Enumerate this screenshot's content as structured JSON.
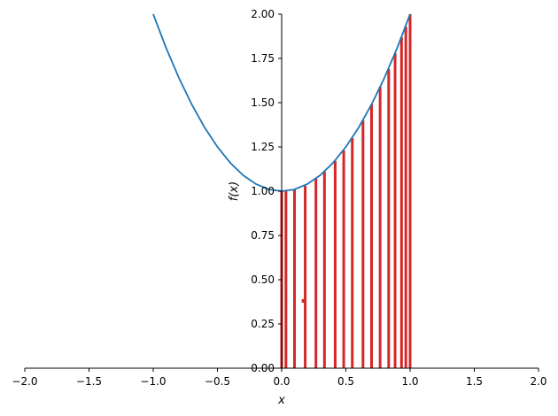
{
  "chart_data": {
    "type": "line",
    "xlabel": "x",
    "ylabel": "f(x)",
    "xlim": [
      -2,
      2
    ],
    "ylim": [
      0,
      2
    ],
    "grid": false,
    "xticks": [
      "−2.0",
      "−1.5",
      "−1.0",
      "−0.5",
      "0.0",
      "0.5",
      "1.0",
      "1.5",
      "2.0"
    ],
    "yticks": [
      "0.00",
      "0.25",
      "0.50",
      "0.75",
      "1.00",
      "1.25",
      "1.50",
      "1.75",
      "2.00"
    ],
    "xtick_values": [
      -2,
      -1.5,
      -1,
      -0.5,
      0,
      0.5,
      1,
      1.5,
      2
    ],
    "ytick_values": [
      0,
      0.25,
      0.5,
      0.75,
      1,
      1.25,
      1.5,
      1.75,
      2
    ],
    "curve": {
      "color": "#1f77b4",
      "x": [
        -1.0,
        -0.9,
        -0.8,
        -0.7,
        -0.6,
        -0.5,
        -0.4,
        -0.3,
        -0.2,
        -0.1,
        0.0,
        0.1,
        0.2,
        0.3,
        0.4,
        0.5,
        0.6,
        0.7,
        0.8,
        0.9,
        1.0
      ],
      "y": [
        2.0,
        1.81,
        1.64,
        1.49,
        1.36,
        1.25,
        1.16,
        1.09,
        1.04,
        1.01,
        1.0,
        1.01,
        1.04,
        1.09,
        1.16,
        1.25,
        1.36,
        1.49,
        1.64,
        1.81,
        2.0
      ]
    },
    "bars": {
      "color": "#d62728",
      "x": [
        0.0,
        0.0333,
        0.1,
        0.1833,
        0.2667,
        0.3333,
        0.4167,
        0.4833,
        0.55,
        0.6333,
        0.7,
        0.7667,
        0.8333,
        0.8833,
        0.9333,
        0.9667,
        1.0
      ],
      "y": [
        1.0,
        1.0,
        1.01,
        1.03,
        1.07,
        1.11,
        1.17,
        1.23,
        1.3,
        1.4,
        1.49,
        1.59,
        1.69,
        1.78,
        1.87,
        1.93,
        2.0
      ]
    },
    "stray_marks": [
      {
        "x": 0.1667,
        "y": 0.38
      }
    ]
  }
}
